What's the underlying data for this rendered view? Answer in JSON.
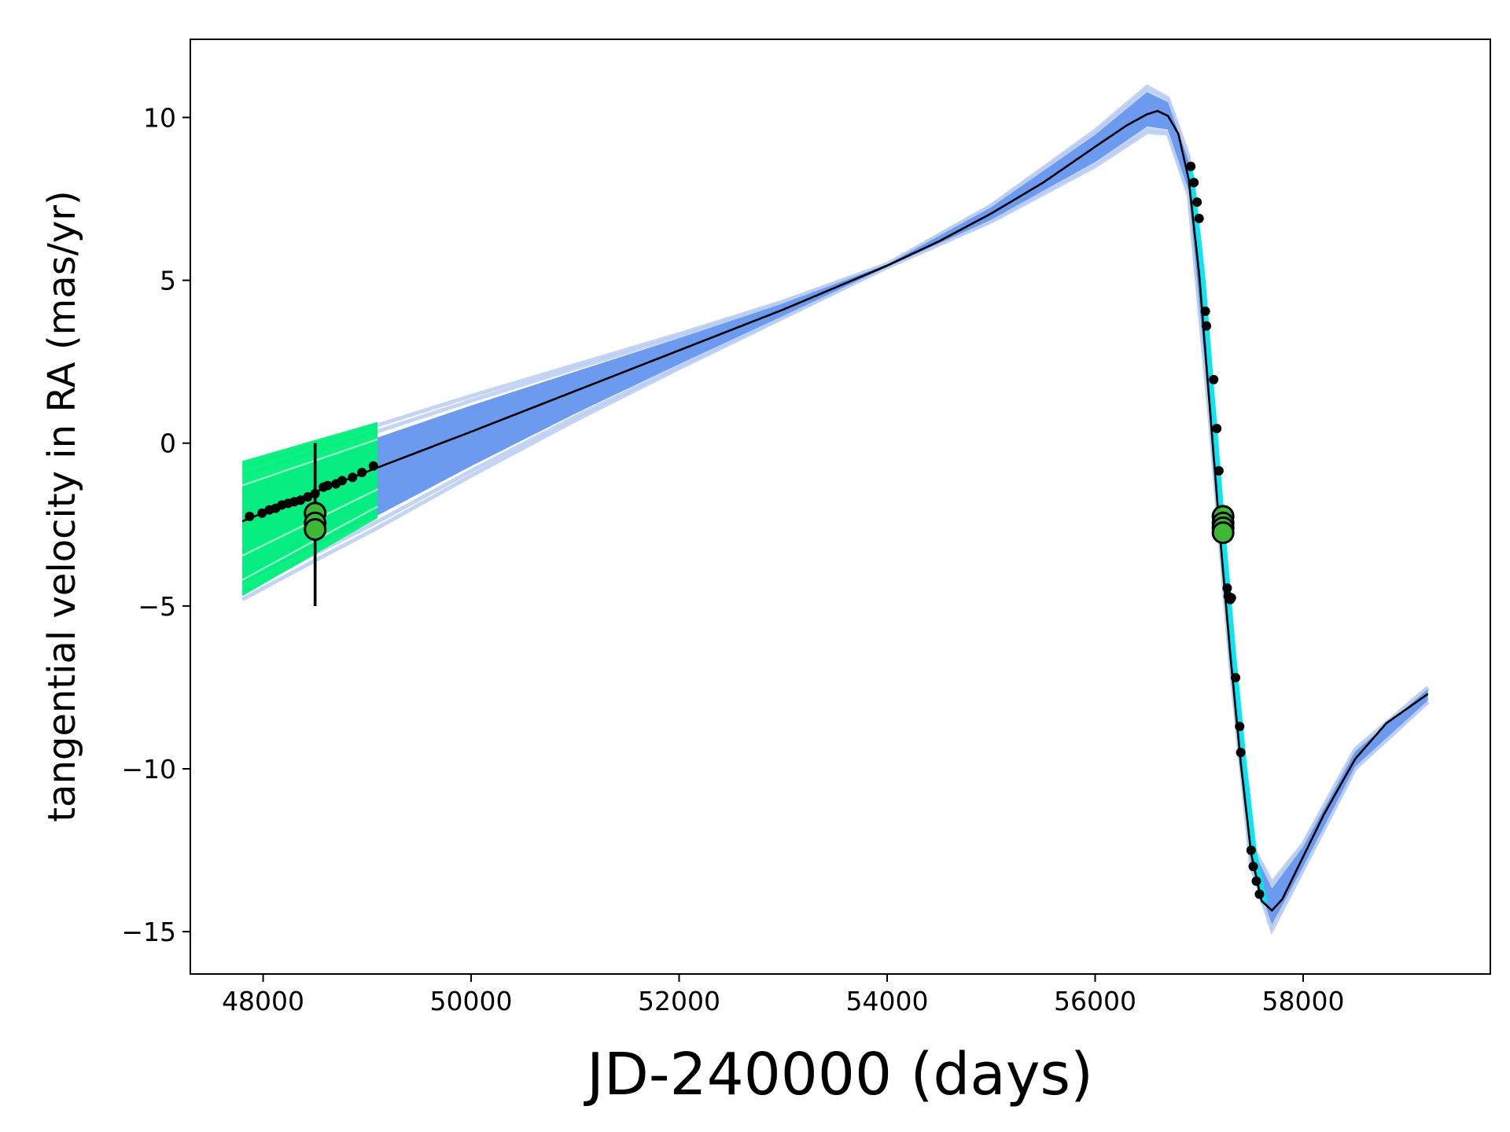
{
  "chart_data": {
    "type": "line",
    "title": "",
    "xlabel": "JD-240000 (days)",
    "ylabel": "tangential velocity in RA (mas/yr)",
    "xlim": [
      47300,
      59800
    ],
    "ylim": [
      -16.3,
      12.4
    ],
    "xticks": [
      48000,
      50000,
      52000,
      54000,
      56000,
      58000
    ],
    "xtick_labels": [
      "48000",
      "50000",
      "52000",
      "54000",
      "56000",
      "58000"
    ],
    "yticks": [
      10,
      5,
      0,
      -5,
      -10,
      -15
    ],
    "ytick_labels": [
      "10",
      "5",
      "0",
      "−5",
      "−10",
      "−15"
    ],
    "grid": false,
    "legend": "none",
    "colors": {
      "model": "#000000",
      "posterior_samples": "#6495ed",
      "hipparcos_band": "#00f07a",
      "gaia_band": "#00e5f0",
      "binned_points": "#3cb832",
      "data_points": "#000000"
    },
    "series": [
      {
        "role": "best-fit model",
        "x": [
          47800,
          48500,
          49100,
          50000,
          51000,
          52000,
          53000,
          54000,
          54500,
          55000,
          55500,
          56000,
          56300,
          56500,
          56600,
          56700,
          56800,
          56900,
          57000,
          57100,
          57200,
          57300,
          57400,
          57500,
          57600,
          57700,
          57800,
          58000,
          58200,
          58500,
          58800,
          59200
        ],
        "y": [
          -2.4,
          -1.5,
          -0.75,
          0.35,
          1.6,
          2.85,
          4.1,
          5.45,
          6.2,
          7.05,
          8.0,
          9.1,
          9.75,
          10.1,
          10.2,
          10.05,
          9.5,
          8.1,
          5.2,
          1.2,
          -2.8,
          -6.5,
          -9.8,
          -12.6,
          -14.05,
          -14.35,
          -14.0,
          -12.7,
          -11.4,
          -9.7,
          -8.6,
          -7.7
        ]
      },
      {
        "role": "posterior band upper",
        "x": [
          47800,
          48500,
          49100,
          50000,
          51000,
          52000,
          53000,
          54000,
          55000,
          56000,
          56500,
          56700,
          56900,
          57100,
          57300,
          57500,
          57700,
          58000,
          58500,
          59200
        ],
        "y": [
          -0.75,
          -0.05,
          0.55,
          1.45,
          2.4,
          3.35,
          4.35,
          5.5,
          7.3,
          9.6,
          10.95,
          10.6,
          8.8,
          1.6,
          -6.3,
          -12.3,
          -13.5,
          -12.3,
          -9.4,
          -7.5
        ]
      },
      {
        "role": "posterior band lower",
        "x": [
          47800,
          48500,
          49100,
          50000,
          51000,
          52000,
          53000,
          54000,
          55000,
          56000,
          56500,
          56700,
          56900,
          57100,
          57300,
          57500,
          57700,
          58000,
          58500,
          59200
        ],
        "y": [
          -4.8,
          -3.6,
          -2.6,
          -1.0,
          0.7,
          2.3,
          3.85,
          5.4,
          6.8,
          8.5,
          9.55,
          9.5,
          7.6,
          0.8,
          -6.8,
          -13.0,
          -14.95,
          -13.1,
          -10.0,
          -7.95
        ]
      },
      {
        "role": "hipparcos band",
        "x_range": [
          47800,
          49100
        ],
        "upper": [
          -0.55,
          0.65
        ],
        "lower": [
          -4.7,
          -2.3
        ]
      },
      {
        "role": "hipparcos epochs",
        "x": [
          47870,
          47990,
          48060,
          48120,
          48180,
          48240,
          48300,
          48360,
          48430,
          48500,
          48580,
          48620,
          48700,
          48760,
          48860,
          48950,
          49060
        ],
        "y": [
          -2.25,
          -2.15,
          -2.05,
          -2.0,
          -1.9,
          -1.85,
          -1.8,
          -1.75,
          -1.65,
          -1.55,
          -1.35,
          -1.3,
          -1.25,
          -1.15,
          -1.05,
          -0.9,
          -0.7
        ]
      },
      {
        "role": "gaia epochs",
        "x": [
          56920,
          56950,
          56980,
          57000,
          57060,
          57070,
          57140,
          57170,
          57190,
          57270,
          57280,
          57300,
          57310,
          57350,
          57390,
          57400,
          57500,
          57520,
          57550,
          57580
        ],
        "y": [
          8.5,
          8.0,
          7.4,
          6.9,
          4.05,
          3.6,
          1.95,
          0.45,
          -0.85,
          -4.45,
          -4.7,
          -4.8,
          -4.75,
          -7.2,
          -8.7,
          -9.5,
          -12.5,
          -13.0,
          -13.45,
          -13.85
        ]
      },
      {
        "role": "binned measurements",
        "x": [
          48500,
          48500,
          48500,
          57230,
          57230,
          57230,
          57230
        ],
        "y": [
          -2.15,
          -2.45,
          -2.65,
          -2.25,
          -2.45,
          -2.6,
          -2.75
        ],
        "errorbar_low": [
          -5.0,
          -5.0,
          -5.0,
          -2.95,
          -2.95,
          -2.95,
          -2.95
        ],
        "errorbar_high": [
          0.0,
          0.0,
          0.0,
          -2.1,
          -2.1,
          -2.1,
          -2.1
        ]
      }
    ]
  }
}
